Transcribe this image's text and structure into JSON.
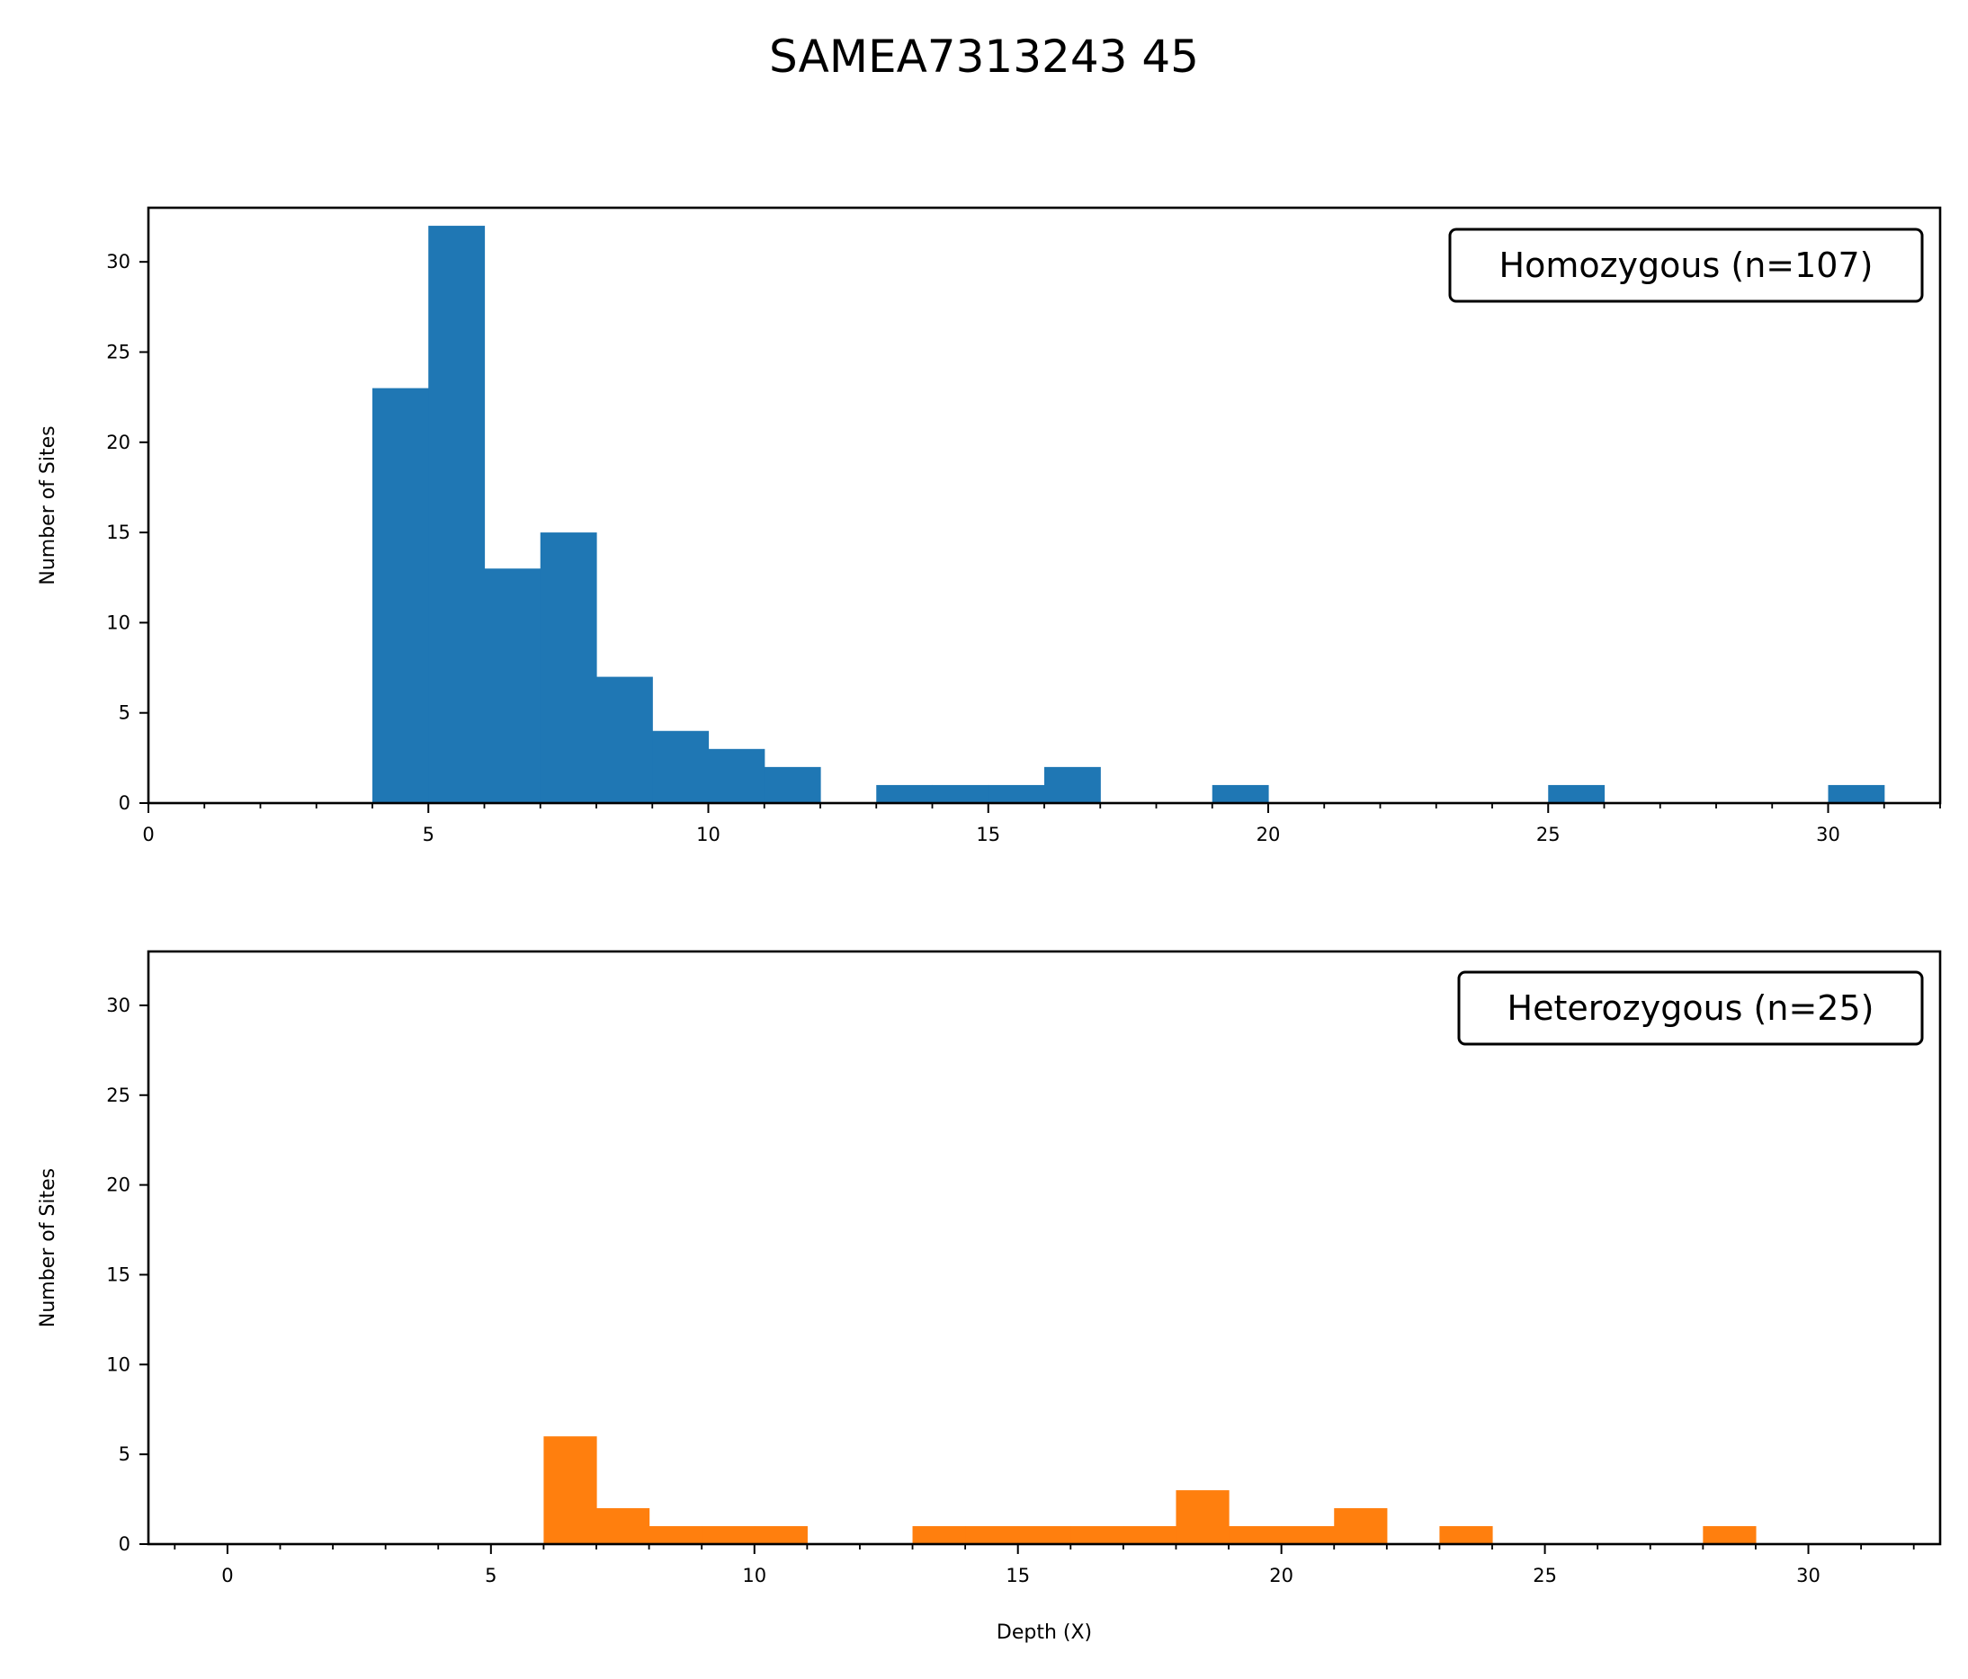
{
  "title": "SAMEA7313243 45",
  "colors": {
    "homozygous": "#1f77b4",
    "heterozygous": "#ff7f0e"
  },
  "chart_data": [
    {
      "type": "bar",
      "subtype": "histogram",
      "legend": "Homozygous (n=107)",
      "legend_position": "top-right",
      "xlabel": "",
      "ylabel": "Number of Sites",
      "xlim": [
        0,
        32
      ],
      "ylim": [
        0,
        33
      ],
      "xticks": [
        0,
        5,
        10,
        15,
        20,
        25,
        30
      ],
      "yticks": [
        0,
        5,
        10,
        15,
        20,
        25,
        30
      ],
      "bins": [
        {
          "x0": 4,
          "x1": 5,
          "count": 23
        },
        {
          "x0": 5,
          "x1": 6,
          "count": 32
        },
        {
          "x0": 6,
          "x1": 7,
          "count": 13
        },
        {
          "x0": 7,
          "x1": 8,
          "count": 15
        },
        {
          "x0": 8,
          "x1": 9,
          "count": 7
        },
        {
          "x0": 9,
          "x1": 10,
          "count": 4
        },
        {
          "x0": 10,
          "x1": 11,
          "count": 3
        },
        {
          "x0": 11,
          "x1": 12,
          "count": 2
        },
        {
          "x0": 13,
          "x1": 14,
          "count": 1
        },
        {
          "x0": 14,
          "x1": 15,
          "count": 1
        },
        {
          "x0": 15,
          "x1": 16,
          "count": 1
        },
        {
          "x0": 16,
          "x1": 17,
          "count": 2
        },
        {
          "x0": 19,
          "x1": 20,
          "count": 1
        },
        {
          "x0": 25,
          "x1": 26,
          "count": 1
        },
        {
          "x0": 30,
          "x1": 31,
          "count": 1
        }
      ]
    },
    {
      "type": "bar",
      "subtype": "histogram",
      "legend": "Heterozygous (n=25)",
      "legend_position": "top-right",
      "xlabel": "Depth (X)",
      "ylabel": "Number of Sites",
      "xlim": [
        -1.5,
        32.5
      ],
      "ylim": [
        0,
        33
      ],
      "xticks": [
        0,
        5,
        10,
        15,
        20,
        25,
        30
      ],
      "yticks": [
        0,
        5,
        10,
        15,
        20,
        25,
        30
      ],
      "bins": [
        {
          "x0": 6,
          "x1": 7,
          "count": 6
        },
        {
          "x0": 7,
          "x1": 8,
          "count": 2
        },
        {
          "x0": 8,
          "x1": 9,
          "count": 1
        },
        {
          "x0": 9,
          "x1": 10,
          "count": 1
        },
        {
          "x0": 10,
          "x1": 11,
          "count": 1
        },
        {
          "x0": 13,
          "x1": 14,
          "count": 1
        },
        {
          "x0": 14,
          "x1": 15,
          "count": 1
        },
        {
          "x0": 15,
          "x1": 16,
          "count": 1
        },
        {
          "x0": 16,
          "x1": 17,
          "count": 1
        },
        {
          "x0": 17,
          "x1": 18,
          "count": 1
        },
        {
          "x0": 18,
          "x1": 19,
          "count": 3
        },
        {
          "x0": 19,
          "x1": 20,
          "count": 1
        },
        {
          "x0": 20,
          "x1": 21,
          "count": 1
        },
        {
          "x0": 21,
          "x1": 22,
          "count": 2
        },
        {
          "x0": 23,
          "x1": 24,
          "count": 1
        },
        {
          "x0": 28,
          "x1": 29,
          "count": 1
        }
      ]
    }
  ]
}
